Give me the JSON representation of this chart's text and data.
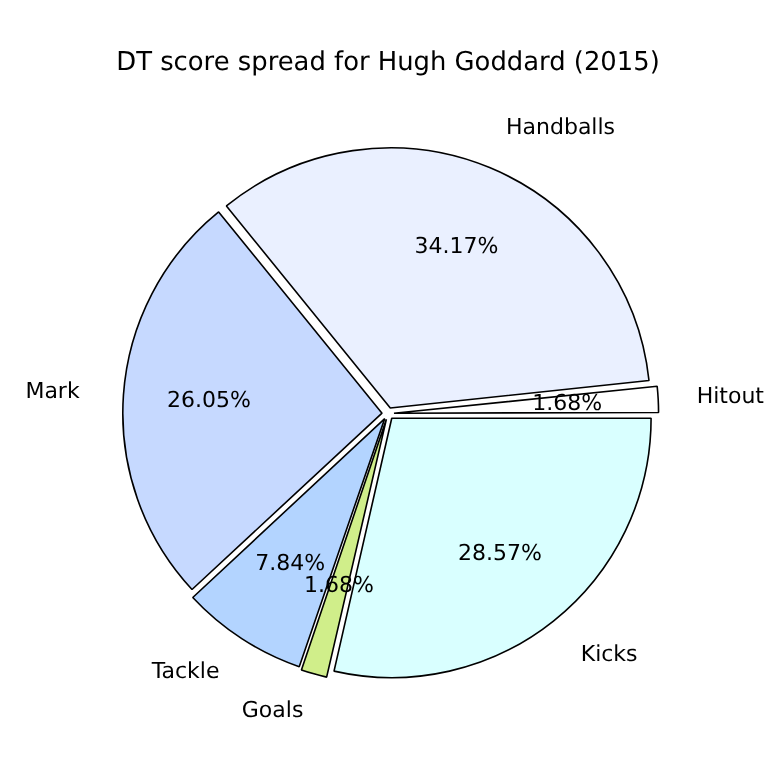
{
  "chart_data": {
    "type": "pie",
    "title": "DT score spread for Hugh Goddard (2015)",
    "categories": [
      "Kicks",
      "Goals",
      "Tackle",
      "Mark",
      "Handballs",
      "Hitout"
    ],
    "values": [
      28.57,
      1.68,
      7.84,
      26.05,
      34.17,
      1.68
    ],
    "value_labels": [
      "28.57%",
      "1.68%",
      "7.84%",
      "26.05%",
      "34.17%",
      "1.68%"
    ],
    "colors": [
      "#d9ffff",
      "#d0ee8a",
      "#b3d4ff",
      "#c6d9ff",
      "#eaf0ff",
      "#ffffff"
    ],
    "legend": false
  }
}
